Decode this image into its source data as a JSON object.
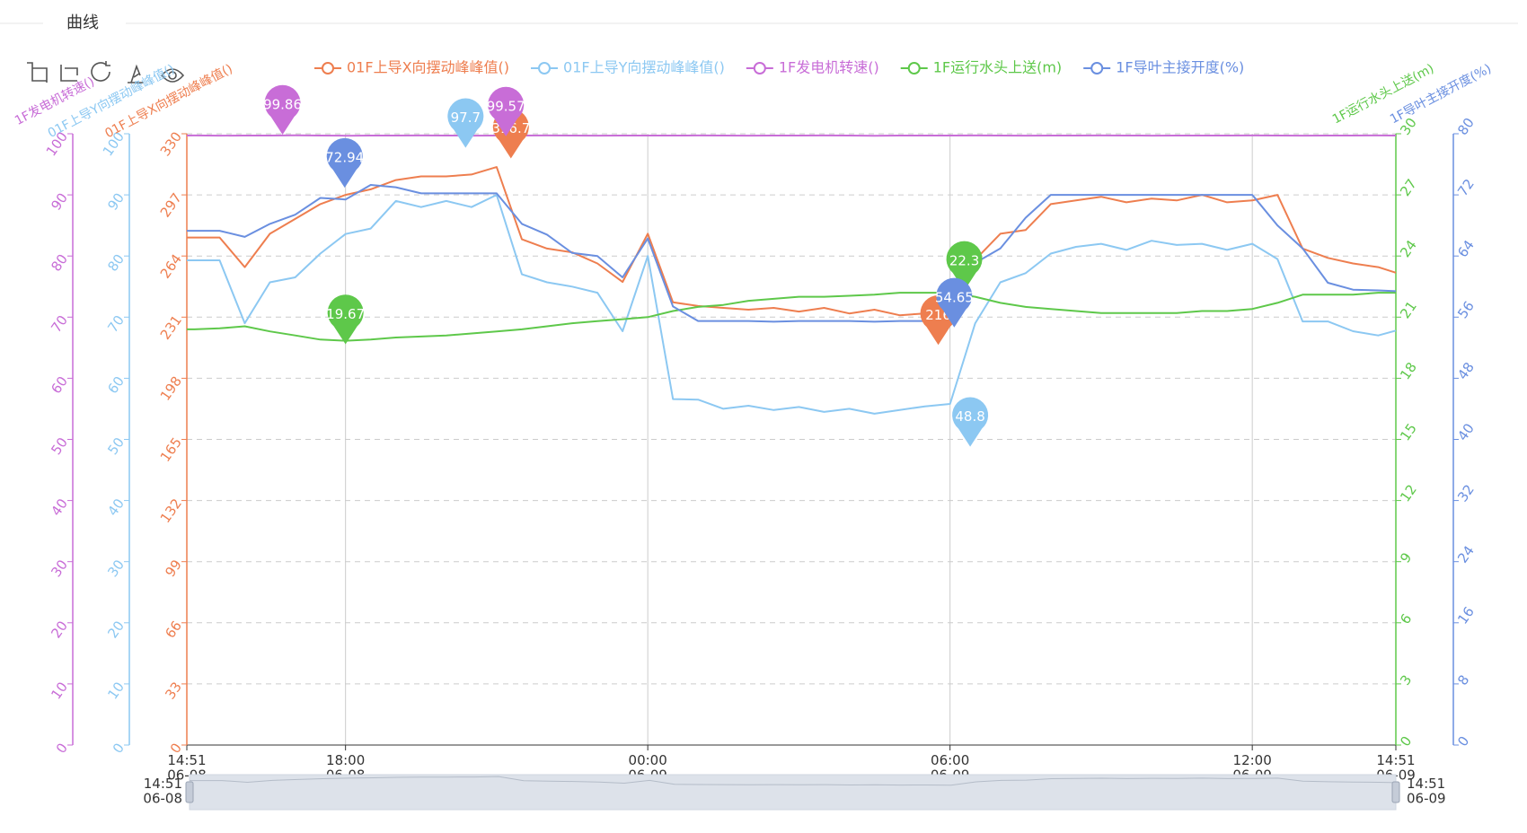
{
  "chart_data": {
    "type": "line",
    "title": "曲线",
    "x": [
      "06-08 14:51",
      "06-08 15:00",
      "06-08 15:30",
      "06-08 16:00",
      "06-08 16:30",
      "06-08 17:00",
      "06-08 17:30",
      "06-08 18:00",
      "06-08 18:30",
      "06-08 19:00",
      "06-08 19:30",
      "06-08 20:00",
      "06-08 20:30",
      "06-08 21:00",
      "06-08 21:30",
      "06-08 22:00",
      "06-08 22:30",
      "06-08 23:00",
      "06-08 23:30",
      "06-09 00:00",
      "06-09 00:30",
      "06-09 01:00",
      "06-09 01:30",
      "06-09 02:00",
      "06-09 02:30",
      "06-09 03:00",
      "06-09 03:30",
      "06-09 04:00",
      "06-09 04:30",
      "06-09 05:00",
      "06-09 05:30",
      "06-09 06:00",
      "06-09 06:30",
      "06-09 07:00",
      "06-09 07:30",
      "06-09 08:00",
      "06-09 08:30",
      "06-09 09:00",
      "06-09 09:30",
      "06-09 10:00",
      "06-09 10:30",
      "06-09 11:00",
      "06-09 11:30",
      "06-09 12:00",
      "06-09 12:30",
      "06-09 13:00",
      "06-09 13:30",
      "06-09 14:00",
      "06-09 14:30",
      "06-09 14:51"
    ],
    "xlim": [
      "06-08 14:51",
      "06-09 14:51"
    ],
    "xticks": [
      {
        "value": "06-08 14:51",
        "label": "14:51\n06-08"
      },
      {
        "value": "06-08 18:00",
        "label": "18:00\n06-08"
      },
      {
        "value": "06-09 00:00",
        "label": "00:00\n06-09"
      },
      {
        "value": "06-09 06:00",
        "label": "06:00\n06-09"
      },
      {
        "value": "06-09 12:00",
        "label": "12:00\n06-09"
      },
      {
        "value": "06-09 14:51",
        "label": "14:51\n06-09"
      }
    ],
    "x_grid": true,
    "y_axes": [
      {
        "name": "1F发电机转速()",
        "color": "#c86dd7",
        "position": "left",
        "lim": [
          0,
          100
        ],
        "ticks": [
          0,
          10,
          20,
          30,
          40,
          50,
          60,
          70,
          80,
          90,
          100
        ]
      },
      {
        "name": "01F上导Y向摆动峰峰值()",
        "color": "#8cc8f2",
        "position": "left",
        "lim": [
          0,
          100
        ],
        "ticks": [
          0,
          10,
          20,
          30,
          40,
          50,
          60,
          70,
          80,
          90,
          100
        ]
      },
      {
        "name": "01F上导X向摆动峰峰值()",
        "color": "#ee7e4f",
        "position": "left",
        "lim": [
          0,
          330
        ],
        "ticks": [
          0,
          33,
          66,
          99,
          132,
          165,
          198,
          231,
          264,
          297,
          330
        ],
        "grid": true
      },
      {
        "name": "1F运行水头上送(m)",
        "color": "#5ec84a",
        "position": "right",
        "lim": [
          0,
          30
        ],
        "ticks": [
          0,
          3,
          6,
          9,
          12,
          15,
          18,
          21,
          24,
          27,
          30
        ]
      },
      {
        "name": "1F导叶主接开度(%)",
        "color": "#6a8fe0",
        "position": "right",
        "lim": [
          0,
          80
        ],
        "ticks": [
          0,
          8,
          16,
          24,
          32,
          40,
          48,
          56,
          64,
          72,
          80
        ]
      }
    ],
    "series": [
      {
        "name": "01F上导X向摆动峰峰值()",
        "color": "#ee7e4f",
        "axis": 2,
        "values": [
          274,
          274,
          274,
          258,
          276,
          284,
          292,
          297,
          300,
          305,
          307,
          307,
          308,
          312,
          273,
          268,
          266,
          260,
          250,
          276,
          239,
          237,
          236,
          235,
          236,
          234,
          236,
          233,
          235,
          232,
          233,
          230,
          262,
          276,
          278,
          292,
          294,
          296,
          293,
          295,
          294,
          297,
          293,
          294,
          297,
          268,
          263,
          260,
          258,
          255
        ],
        "mark_points": [
          {
            "x": "06-08 21:17",
            "value": 316.7
          },
          {
            "x": "06-09 05:46",
            "value": 216
          }
        ]
      },
      {
        "name": "01F上导Y向摆动峰峰值()",
        "color": "#8cc8f2",
        "axis": 1,
        "values": [
          79.3,
          79.3,
          79.3,
          69,
          75.7,
          76.5,
          80.4,
          83.6,
          84.5,
          89,
          88,
          89,
          88,
          90,
          77,
          75.7,
          75,
          74,
          67.7,
          80,
          56.6,
          56.5,
          55,
          55.5,
          54.8,
          55.3,
          54.5,
          55,
          54.2,
          54.8,
          55.4,
          55.8,
          69,
          75.7,
          77.2,
          80.4,
          81.5,
          82,
          81,
          82.5,
          81.8,
          82,
          81,
          82,
          79.5,
          69.3,
          69.3,
          67.7,
          67,
          67.8
        ],
        "mark_points": [
          {
            "x": "06-08 20:23",
            "value": 97.7
          },
          {
            "x": "06-09 06:24",
            "value": 48.8
          }
        ]
      },
      {
        "name": "1F发电机转速()",
        "color": "#c86dd7",
        "axis": 0,
        "values": [
          99.7,
          99.72,
          99.69,
          99.71,
          99.7,
          99.73,
          99.7,
          99.68,
          99.71,
          99.7,
          99.72,
          99.7,
          99.69,
          99.71,
          99.7,
          99.72,
          99.7,
          99.69,
          99.7,
          99.71,
          99.7,
          99.72,
          99.7,
          99.69,
          99.71,
          99.7,
          99.72,
          99.7,
          99.68,
          99.71,
          99.7,
          99.7,
          99.72,
          99.7,
          99.69,
          99.71,
          99.7,
          99.72,
          99.7,
          99.69,
          99.7,
          99.71,
          99.7,
          99.72,
          99.7,
          99.69,
          99.71,
          99.7,
          99.72,
          99.7
        ],
        "mark_points": [
          {
            "x": "06-08 16:45",
            "value": 99.86
          },
          {
            "x": "06-08 21:11",
            "value": 99.57
          }
        ]
      },
      {
        "name": "1F运行水头上送(m)",
        "color": "#5ec84a",
        "axis": 3,
        "values": [
          20.4,
          20.4,
          20.45,
          20.55,
          20.3,
          20.1,
          19.9,
          19.84,
          19.9,
          20.0,
          20.05,
          20.1,
          20.2,
          20.3,
          20.4,
          20.55,
          20.7,
          20.8,
          20.9,
          21.0,
          21.3,
          21.5,
          21.6,
          21.8,
          21.9,
          22.0,
          22.0,
          22.05,
          22.1,
          22.2,
          22.2,
          22.2,
          22.0,
          21.7,
          21.5,
          21.4,
          21.3,
          21.2,
          21.2,
          21.2,
          21.2,
          21.3,
          21.3,
          21.4,
          21.7,
          22.1,
          22.1,
          22.1,
          22.2,
          22.2
        ],
        "mark_points": [
          {
            "x": "06-08 18:00",
            "value": 19.67
          },
          {
            "x": "06-09 06:17",
            "value": 22.3
          }
        ]
      },
      {
        "name": "1F导叶主接开度(%)",
        "color": "#6a8fe0",
        "axis": 4,
        "values": [
          67.3,
          67.3,
          67.3,
          66.5,
          68.2,
          69.4,
          71.6,
          71.4,
          73.3,
          73,
          72.2,
          72.2,
          72.2,
          72.2,
          68.2,
          66.8,
          64.4,
          64,
          61.2,
          66.3,
          57.4,
          55.5,
          55.5,
          55.5,
          55.4,
          55.5,
          55.5,
          55.5,
          55.4,
          55.5,
          55.5,
          55.5,
          63.1,
          65,
          69,
          72,
          72,
          72,
          72,
          72,
          72,
          72,
          72,
          72,
          68,
          65,
          60.5,
          59.6,
          59.5,
          59.4
        ],
        "mark_points": [
          {
            "x": "06-08 17:59",
            "value": 72.94
          },
          {
            "x": "06-09 06:05",
            "value": 54.65
          }
        ]
      }
    ]
  }
}
